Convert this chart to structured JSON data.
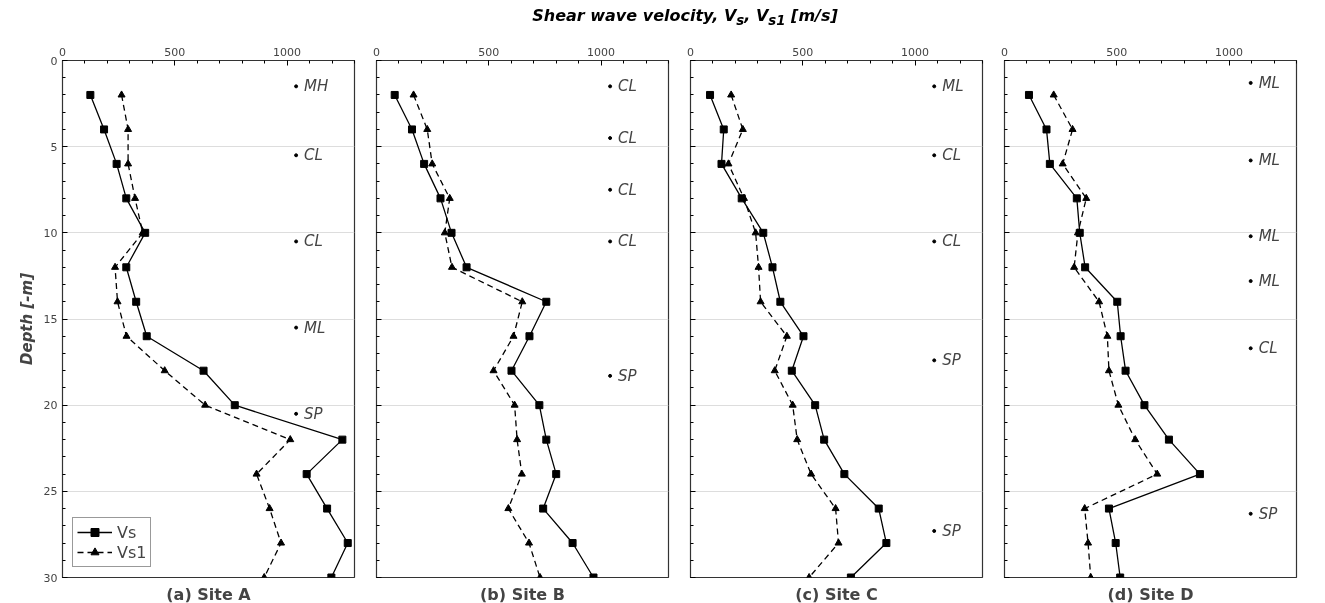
{
  "chart_data": [
    {
      "type": "line",
      "title": "(a) Site A",
      "ylabel": "Depth [-m]",
      "xlim": [
        0,
        1300
      ],
      "xticks": [
        0,
        500,
        1000
      ],
      "ylim": [
        30,
        0
      ],
      "yticks": [
        0,
        5,
        10,
        15,
        20,
        25,
        30
      ],
      "grid": "y",
      "legend": "bottom left",
      "series": [
        {
          "name": "Vs",
          "color": "#000000",
          "marker": "square",
          "line_style": "solid",
          "x": [
            124,
            185,
            241,
            284,
            368,
            284,
            328,
            375,
            628,
            767,
            1246,
            1087,
            1178,
            1270,
            1197
          ],
          "values": [
            2,
            4,
            6,
            8,
            10,
            12,
            14,
            16,
            18,
            20,
            22,
            24,
            26,
            28,
            30
          ]
        },
        {
          "name": "Vs1",
          "color": "#000000",
          "marker": "triangle",
          "line_style": "dashed",
          "x": [
            263,
            292,
            292,
            323,
            357,
            234,
            245,
            285,
            455,
            635,
            1014,
            864,
            922,
            973,
            898
          ],
          "values": [
            2,
            4,
            6,
            8,
            10,
            12,
            14,
            16,
            18,
            20,
            22,
            24,
            26,
            28,
            30
          ]
        }
      ],
      "annotations": [
        {
          "text": "MH",
          "x": 1040,
          "y": 1.5
        },
        {
          "text": "CL",
          "x": 1040,
          "y": 5.5
        },
        {
          "text": "CL",
          "x": 1040,
          "y": 10.5
        },
        {
          "text": "ML",
          "x": 1040,
          "y": 15.5
        },
        {
          "text": "SP",
          "x": 1040,
          "y": 20.5
        }
      ]
    },
    {
      "type": "line",
      "title": "(b) Site B",
      "xlabel": "Shear wave velocity, V$_{s}$, V$_{s1}$ [m/s]",
      "xlim": [
        0,
        1300
      ],
      "xticks": [
        0,
        500,
        1000
      ],
      "ylim": [
        30,
        0
      ],
      "yticks": [
        0,
        5,
        10,
        15,
        20,
        25,
        30
      ],
      "grid": "y",
      "tick_labels": "x",
      "series": [
        {
          "color": "#000000",
          "marker": "square",
          "line_style": "solid",
          "x": [
            81,
            158,
            212,
            285,
            334,
            401,
            756,
            681,
            601,
            725,
            756,
            800,
            742,
            873,
            966
          ],
          "values": [
            2,
            4,
            6,
            8,
            10,
            12,
            14,
            16,
            18,
            20,
            22,
            24,
            26,
            28,
            30
          ]
        },
        {
          "color": "#000000",
          "marker": "triangle",
          "line_style": "dashed",
          "x": [
            165,
            226,
            248,
            326,
            304,
            336,
            649,
            610,
            521,
            615,
            626,
            647,
            587,
            679,
            728
          ],
          "values": [
            2,
            4,
            6,
            8,
            10,
            12,
            14,
            16,
            18,
            20,
            22,
            24,
            26,
            28,
            30
          ]
        }
      ],
      "annotations": [
        {
          "text": "CL",
          "x": 1040,
          "y": 1.5
        },
        {
          "text": "CL",
          "x": 1040,
          "y": 4.5
        },
        {
          "text": "CL",
          "x": 1040,
          "y": 7.5
        },
        {
          "text": "CL",
          "x": 1040,
          "y": 10.5
        },
        {
          "text": "SP",
          "x": 1040,
          "y": 18.3
        }
      ]
    },
    {
      "type": "line",
      "title": "(c) Site C",
      "xlim": [
        0,
        1300
      ],
      "xticks": [
        0,
        500,
        1000
      ],
      "ylim": [
        30,
        0
      ],
      "yticks": [
        0,
        5,
        10,
        15,
        20,
        25,
        30
      ],
      "grid": "y",
      "tick_labels": "x",
      "series": [
        {
          "color": "#000000",
          "marker": "square",
          "line_style": "solid",
          "x": [
            87,
            148,
            138,
            228,
            324,
            365,
            400,
            503,
            451,
            555,
            595,
            685,
            838,
            872,
            714
          ],
          "values": [
            2,
            4,
            6,
            8,
            10,
            12,
            14,
            16,
            18,
            20,
            22,
            24,
            26,
            28,
            30
          ]
        },
        {
          "color": "#000000",
          "marker": "triangle",
          "line_style": "dashed",
          "x": [
            181,
            233,
            169,
            238,
            290,
            303,
            312,
            429,
            375,
            455,
            475,
            537,
            646,
            659,
            528
          ],
          "values": [
            2,
            4,
            6,
            8,
            10,
            12,
            14,
            16,
            18,
            20,
            22,
            24,
            26,
            28,
            30
          ]
        }
      ],
      "annotations": [
        {
          "text": "ML",
          "x": 1085,
          "y": 1.5
        },
        {
          "text": "CL",
          "x": 1085,
          "y": 5.5
        },
        {
          "text": "CL",
          "x": 1085,
          "y": 10.5
        },
        {
          "text": "SP",
          "x": 1085,
          "y": 17.4
        },
        {
          "text": "SP",
          "x": 1085,
          "y": 27.3
        }
      ]
    },
    {
      "type": "line",
      "title": "(d) Site D",
      "xlim": [
        0,
        1300
      ],
      "xticks": [
        0,
        500,
        1000
      ],
      "ylim": [
        30,
        0
      ],
      "yticks": [
        0,
        5,
        10,
        15,
        20,
        25,
        30
      ],
      "grid": "y",
      "tick_labels": "x",
      "series": [
        {
          "color": "#000000",
          "marker": "square",
          "line_style": "solid",
          "x": [
            109,
            187,
            202,
            322,
            335,
            359,
            502,
            517,
            539,
            623,
            732,
            870,
            465,
            495,
            515
          ],
          "values": [
            2,
            4,
            6,
            8,
            10,
            12,
            14,
            16,
            18,
            20,
            22,
            24,
            26,
            28,
            30
          ]
        },
        {
          "color": "#000000",
          "marker": "triangle",
          "line_style": "dashed",
          "x": [
            219,
            303,
            259,
            364,
            327,
            310,
            421,
            458,
            465,
            507,
            582,
            680,
            357,
            372,
            384
          ],
          "values": [
            2,
            4,
            6,
            8,
            10,
            12,
            14,
            16,
            18,
            20,
            22,
            24,
            26,
            28,
            30
          ]
        }
      ],
      "annotations": [
        {
          "text": "ML",
          "x": 1096,
          "y": 1.3
        },
        {
          "text": "ML",
          "x": 1096,
          "y": 5.8
        },
        {
          "text": "ML",
          "x": 1096,
          "y": 10.2
        },
        {
          "text": "ML",
          "x": 1096,
          "y": 12.8
        },
        {
          "text": "CL",
          "x": 1096,
          "y": 16.7
        },
        {
          "text": "SP",
          "x": 1096,
          "y": 26.3
        }
      ]
    }
  ]
}
